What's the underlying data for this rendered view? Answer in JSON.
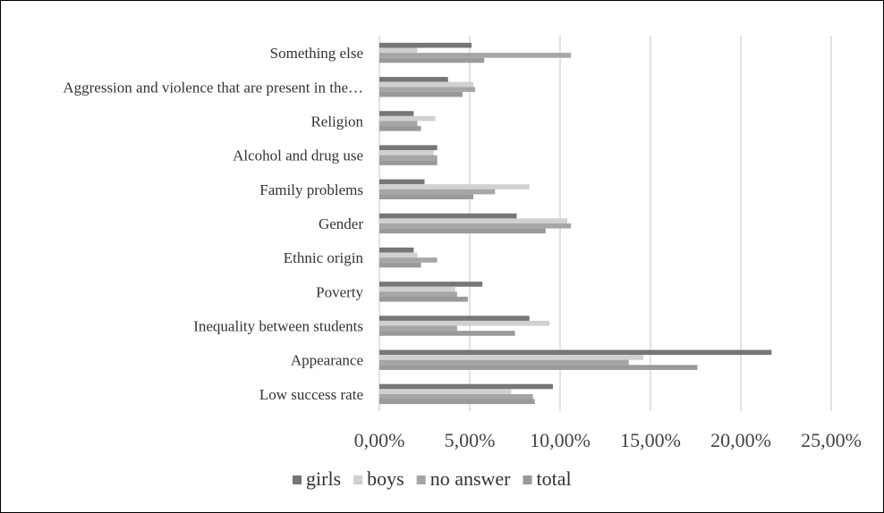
{
  "chart_data": {
    "type": "bar",
    "orientation": "horizontal",
    "categories": [
      "Low success rate",
      "Appearance",
      "Inequality between students",
      "Poverty",
      "Ethnic origin",
      "Gender",
      "Family problems",
      "Alcohol and drug use",
      "Religion",
      "Aggression and violence that are present in the…",
      "Something else"
    ],
    "series": [
      {
        "name": "girls",
        "color": "#767676",
        "values": [
          9.6,
          21.7,
          8.3,
          5.7,
          1.9,
          7.6,
          2.5,
          3.2,
          1.9,
          3.8,
          5.1
        ]
      },
      {
        "name": "boys",
        "color": "#d0d0d0",
        "values": [
          7.3,
          14.6,
          9.4,
          4.2,
          2.1,
          10.4,
          8.3,
          3.0,
          3.1,
          5.2,
          2.1
        ]
      },
      {
        "name": "no answer",
        "color": "#a6a6a6",
        "values": [
          8.5,
          13.8,
          4.3,
          4.3,
          3.2,
          10.6,
          6.4,
          3.2,
          2.1,
          5.3,
          10.6
        ]
      },
      {
        "name": "total",
        "color": "#9a9a9a",
        "values": [
          8.6,
          17.6,
          7.5,
          4.9,
          2.3,
          9.2,
          5.2,
          3.2,
          2.3,
          4.6,
          5.8
        ]
      }
    ],
    "xlim": [
      0,
      25
    ],
    "xticks": [
      "0,00%",
      "5,00%",
      "10,00%",
      "15,00%",
      "20,00%",
      "25,00%"
    ],
    "title": "",
    "xlabel": "",
    "ylabel": "",
    "grid": "vertical",
    "legend_position": "bottom"
  }
}
